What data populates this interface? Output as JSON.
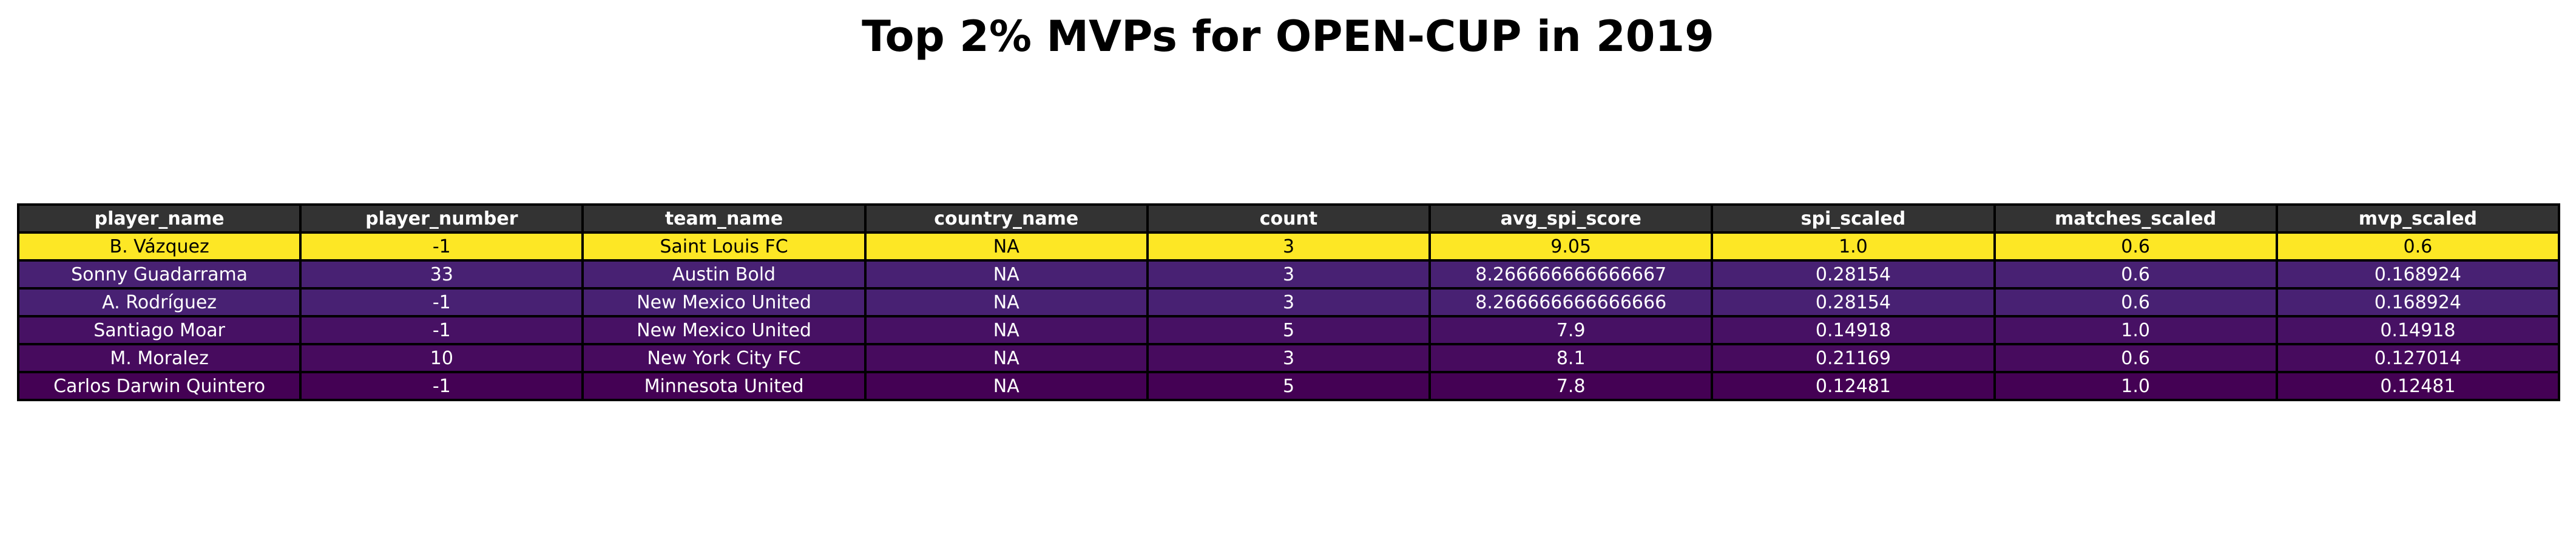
{
  "chart_data": {
    "type": "table",
    "title": "Top 2% MVPs for OPEN-CUP in 2019",
    "columns": [
      "player_name",
      "player_number",
      "team_name",
      "country_name",
      "count",
      "avg_spi_score",
      "spi_scaled",
      "matches_scaled",
      "mvp_scaled"
    ],
    "rows": [
      {
        "cells": [
          "B. Vázquez",
          "-1",
          "Saint Louis FC",
          "NA",
          "3",
          "9.05",
          "1.0",
          "0.6",
          "0.6"
        ],
        "bg": "#fde725",
        "fg": "#000000"
      },
      {
        "cells": [
          "Sonny Guadarrama",
          "33",
          "Austin Bold",
          "NA",
          "3",
          "8.266666666666667",
          "0.28154",
          "0.6",
          "0.168924"
        ],
        "bg": "#482173",
        "fg": "#ffffff"
      },
      {
        "cells": [
          "A. Rodríguez",
          "-1",
          "New Mexico United",
          "NA",
          "3",
          "8.266666666666666",
          "0.28154",
          "0.6",
          "0.168924"
        ],
        "bg": "#482173",
        "fg": "#ffffff"
      },
      {
        "cells": [
          "Santiago Moar",
          "-1",
          "New Mexico United",
          "NA",
          "5",
          "7.9",
          "0.14918",
          "1.0",
          "0.14918"
        ],
        "bg": "#471164",
        "fg": "#ffffff"
      },
      {
        "cells": [
          "M. Moralez",
          "10",
          "New York City FC",
          "NA",
          "3",
          "8.1",
          "0.21169",
          "0.6",
          "0.127014"
        ],
        "bg": "#470b5e",
        "fg": "#ffffff"
      },
      {
        "cells": [
          "Carlos Darwin Quintero",
          "-1",
          "Minnesota United",
          "NA",
          "5",
          "7.8",
          "0.12481",
          "1.0",
          "0.12481"
        ],
        "bg": "#440154",
        "fg": "#ffffff"
      }
    ]
  }
}
